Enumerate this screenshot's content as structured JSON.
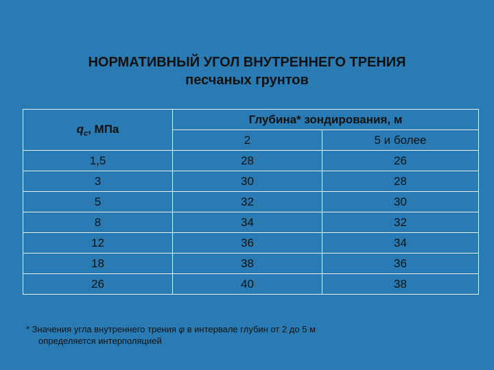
{
  "title": {
    "line1": "НОРМАТИВНЫЙ УГОЛ ВНУТРЕННЕГО ТРЕНИЯ",
    "line2": "песчаных грунтов"
  },
  "table": {
    "qc_symbol": "q",
    "qc_subscript": "c",
    "qc_unit": ", МПа",
    "depth_header": "Глубина* зондирования, м",
    "depth_columns": [
      "2",
      "5 и более"
    ],
    "rows": [
      [
        "1,5",
        "28",
        "26"
      ],
      [
        "3",
        "30",
        "28"
      ],
      [
        "5",
        "32",
        "30"
      ],
      [
        "8",
        "34",
        "32"
      ],
      [
        "12",
        "36",
        "34"
      ],
      [
        "18",
        "38",
        "36"
      ],
      [
        "26",
        "40",
        "38"
      ]
    ]
  },
  "footnote": {
    "line1_before": "*  Значения угла внутреннего трения ",
    "phi": "φ",
    "line1_after": " в интервале глубин от 2 до 5 м",
    "line2": "определяется интерполяцией"
  },
  "colors": {
    "background": "#2a7bb3",
    "grid_lines": "#e8f0f7",
    "text": "#111111"
  }
}
